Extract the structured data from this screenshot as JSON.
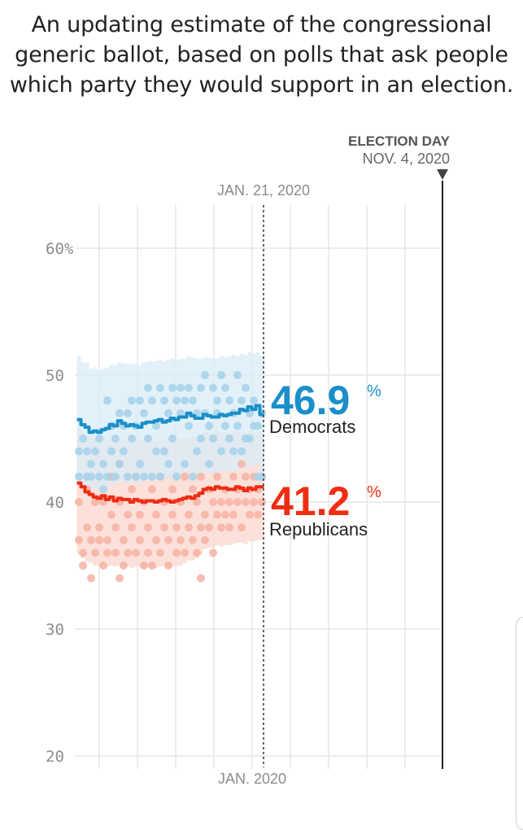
{
  "subtitle": "An updating estimate of the congressional generic ballot, based on polls that ask people which party they would support in an election.",
  "colors": {
    "democrat": "#1a8fc9",
    "democrat_light": "#a9d3ea",
    "democrat_band": "#d8ecf7",
    "republican": "#ee2d12",
    "republican_light": "#f7b5a7",
    "republican_band": "#fbdcd3",
    "grid": "#e6e6e6"
  },
  "chart_data": {
    "type": "line",
    "ylim": [
      20,
      62
    ],
    "yticks": [
      {
        "value": 60,
        "label": "60%"
      },
      {
        "value": 50,
        "label": "50"
      },
      {
        "value": 40,
        "label": "40"
      },
      {
        "value": 30,
        "label": "30"
      },
      {
        "value": 20,
        "label": "20"
      }
    ],
    "x_label": "JAN. 2020",
    "today_marker": "JAN. 21, 2020",
    "election_marker": {
      "title": "ELECTION DAY",
      "date": "NOV. 4, 2020"
    },
    "series": [
      {
        "name": "Democrats",
        "value_label": "46.9",
        "percent_sign": "%",
        "values": [
          46.5,
          46.1,
          45.9,
          45.5,
          45.6,
          45.5,
          45.7,
          45.8,
          46.1,
          46.0,
          46.4,
          46.2,
          46.0,
          46.1,
          46.0,
          45.9,
          46.2,
          46.3,
          46.3,
          46.4,
          46.5,
          46.3,
          46.4,
          46.6,
          46.5,
          46.7,
          46.7,
          47.0,
          46.8,
          46.6,
          46.6,
          46.9,
          46.8,
          46.7,
          46.7,
          46.9,
          46.8,
          46.9,
          47.0,
          47.0,
          47.3,
          47.2,
          47.5,
          47.3,
          47.6,
          46.9
        ],
        "band_high": [
          51.5,
          51.0,
          51.0,
          50.5,
          50.6,
          50.4,
          50.5,
          50.6,
          50.8,
          50.8,
          51.0,
          50.9,
          50.9,
          50.9,
          50.9,
          50.8,
          51.0,
          51.1,
          51.1,
          51.1,
          51.2,
          51.1,
          51.2,
          51.3,
          51.2,
          51.3,
          51.3,
          51.5,
          51.4,
          51.3,
          51.3,
          51.4,
          51.4,
          51.3,
          51.3,
          51.5,
          51.4,
          51.5,
          51.6,
          51.5,
          51.7,
          51.6,
          51.8,
          51.7,
          51.8,
          51.5
        ],
        "band_low": [
          41.6,
          41.3,
          41.2,
          40.9,
          41.0,
          41.0,
          41.1,
          41.2,
          41.4,
          41.4,
          41.7,
          41.6,
          41.5,
          41.6,
          41.5,
          41.5,
          41.7,
          41.8,
          41.8,
          41.8,
          41.9,
          41.8,
          41.9,
          42.0,
          42.0,
          42.1,
          42.1,
          42.4,
          42.3,
          42.2,
          42.2,
          42.3,
          42.3,
          42.2,
          42.3,
          42.4,
          42.4,
          42.4,
          42.5,
          42.5,
          42.7,
          42.6,
          42.9,
          42.8,
          43.0,
          42.3
        ]
      },
      {
        "name": "Republicans",
        "value_label": "41.2",
        "percent_sign": "%",
        "values": [
          41.5,
          41.2,
          40.8,
          40.6,
          40.4,
          40.3,
          40.5,
          40.2,
          40.4,
          40.1,
          40.3,
          40.2,
          40.2,
          40.0,
          40.2,
          40.1,
          40.0,
          40.1,
          40.1,
          40.0,
          40.1,
          40.2,
          40.1,
          40.0,
          40.1,
          40.2,
          40.3,
          40.4,
          40.3,
          40.5,
          40.7,
          41.0,
          41.1,
          41.0,
          41.2,
          41.1,
          41.1,
          41.0,
          41.0,
          41.2,
          41.1,
          40.9,
          41.1,
          41.0,
          41.2,
          41.2
        ],
        "band_high": [
          45.8,
          45.5,
          45.3,
          45.1,
          45.0,
          45.0,
          45.1,
          44.9,
          45.0,
          44.9,
          45.0,
          44.9,
          44.9,
          44.8,
          44.9,
          44.9,
          44.8,
          44.9,
          44.9,
          44.8,
          44.9,
          45.0,
          44.9,
          44.9,
          45.0,
          45.0,
          45.0,
          45.1,
          45.1,
          45.2,
          45.3,
          45.5,
          45.5,
          45.4,
          45.6,
          45.5,
          45.5,
          45.4,
          45.5,
          45.6,
          45.5,
          45.4,
          45.6,
          45.5,
          45.6,
          45.4
        ],
        "band_low": [
          35.9,
          35.6,
          35.3,
          35.2,
          35.0,
          35.0,
          35.1,
          34.9,
          35.0,
          34.9,
          35.0,
          34.9,
          34.9,
          34.8,
          34.9,
          34.9,
          34.8,
          34.9,
          34.9,
          34.8,
          34.9,
          35.0,
          34.9,
          34.9,
          35.0,
          35.0,
          35.2,
          35.4,
          35.4,
          35.6,
          35.9,
          36.3,
          36.4,
          36.4,
          36.6,
          36.5,
          36.6,
          36.6,
          36.7,
          36.8,
          36.8,
          36.7,
          36.9,
          36.9,
          37.0,
          37.0
        ]
      }
    ],
    "polls": {
      "democrats": [
        [
          0,
          44
        ],
        [
          0,
          42
        ],
        [
          1,
          45
        ],
        [
          2,
          42
        ],
        [
          2,
          44
        ],
        [
          3,
          43
        ],
        [
          3,
          42
        ],
        [
          4,
          44
        ],
        [
          5,
          42
        ],
        [
          5,
          45
        ],
        [
          6,
          41
        ],
        [
          6,
          43
        ],
        [
          7,
          42
        ],
        [
          7,
          48
        ],
        [
          8,
          46
        ],
        [
          8,
          44
        ],
        [
          9,
          42
        ],
        [
          9,
          45
        ],
        [
          10,
          47
        ],
        [
          10,
          43
        ],
        [
          11,
          46
        ],
        [
          11,
          44
        ],
        [
          12,
          42
        ],
        [
          12,
          47
        ],
        [
          13,
          45
        ],
        [
          13,
          48
        ],
        [
          14,
          42
        ],
        [
          14,
          46
        ],
        [
          15,
          48
        ],
        [
          15,
          43
        ],
        [
          16,
          47
        ],
        [
          16,
          42
        ],
        [
          17,
          45
        ],
        [
          17,
          49
        ],
        [
          18,
          48
        ],
        [
          18,
          42
        ],
        [
          19,
          44
        ],
        [
          19,
          46
        ],
        [
          20,
          49
        ],
        [
          20,
          42
        ],
        [
          21,
          48
        ],
        [
          21,
          44
        ],
        [
          22,
          47
        ],
        [
          22,
          43
        ],
        [
          23,
          49
        ],
        [
          23,
          45
        ],
        [
          24,
          48
        ],
        [
          24,
          42
        ],
        [
          25,
          47
        ],
        [
          25,
          49
        ],
        [
          26,
          48
        ],
        [
          26,
          43
        ],
        [
          27,
          49
        ],
        [
          27,
          46
        ],
        [
          28,
          48
        ],
        [
          28,
          42
        ],
        [
          29,
          47
        ],
        [
          29,
          44
        ],
        [
          30,
          49
        ],
        [
          30,
          45
        ],
        [
          31,
          50
        ],
        [
          31,
          47
        ],
        [
          32,
          46
        ],
        [
          32,
          43
        ],
        [
          33,
          49
        ],
        [
          33,
          45
        ],
        [
          34,
          48
        ],
        [
          34,
          47
        ],
        [
          35,
          50
        ],
        [
          35,
          44
        ],
        [
          36,
          49
        ],
        [
          36,
          46
        ],
        [
          37,
          45
        ],
        [
          37,
          48
        ],
        [
          38,
          47
        ],
        [
          38,
          44
        ],
        [
          39,
          50
        ],
        [
          39,
          46
        ],
        [
          40,
          44
        ],
        [
          40,
          48
        ],
        [
          41,
          45
        ],
        [
          41,
          49
        ],
        [
          42,
          47
        ],
        [
          42,
          45
        ],
        [
          43,
          48
        ],
        [
          43,
          46
        ],
        [
          44,
          42
        ],
        [
          44,
          46
        ],
        [
          45,
          42
        ],
        [
          45,
          47
        ]
      ],
      "republicans": [
        [
          0,
          40
        ],
        [
          0,
          37
        ],
        [
          1,
          36
        ],
        [
          1,
          35
        ],
        [
          2,
          41
        ],
        [
          2,
          38
        ],
        [
          3,
          34
        ],
        [
          3,
          37
        ],
        [
          4,
          40
        ],
        [
          4,
          36
        ],
        [
          5,
          38
        ],
        [
          5,
          37
        ],
        [
          6,
          35
        ],
        [
          6,
          40
        ],
        [
          7,
          37
        ],
        [
          7,
          36
        ],
        [
          8,
          42
        ],
        [
          8,
          39
        ],
        [
          9,
          36
        ],
        [
          9,
          38
        ],
        [
          10,
          43
        ],
        [
          10,
          40
        ],
        [
          11,
          37
        ],
        [
          11,
          35
        ],
        [
          12,
          39
        ],
        [
          12,
          36
        ],
        [
          13,
          41
        ],
        [
          13,
          38
        ],
        [
          14,
          36
        ],
        [
          14,
          42
        ],
        [
          15,
          39
        ],
        [
          15,
          37
        ],
        [
          16,
          35
        ],
        [
          16,
          40
        ],
        [
          17,
          38
        ],
        [
          17,
          36
        ],
        [
          18,
          41
        ],
        [
          18,
          35
        ],
        [
          19,
          37
        ],
        [
          19,
          39
        ],
        [
          20,
          36
        ],
        [
          20,
          42
        ],
        [
          21,
          38
        ],
        [
          21,
          40
        ],
        [
          22,
          37
        ],
        [
          22,
          35
        ],
        [
          23,
          39
        ],
        [
          23,
          41
        ],
        [
          24,
          36
        ],
        [
          24,
          38
        ],
        [
          25,
          40
        ],
        [
          25,
          37
        ],
        [
          26,
          42
        ],
        [
          26,
          36
        ],
        [
          27,
          39
        ],
        [
          27,
          38
        ],
        [
          28,
          37
        ],
        [
          28,
          41
        ],
        [
          29,
          40
        ],
        [
          29,
          36
        ],
        [
          30,
          38
        ],
        [
          30,
          42
        ],
        [
          31,
          39
        ],
        [
          31,
          37
        ],
        [
          32,
          41
        ],
        [
          32,
          38
        ],
        [
          33,
          40
        ],
        [
          33,
          36
        ],
        [
          34,
          42
        ],
        [
          34,
          39
        ],
        [
          35,
          38
        ],
        [
          35,
          40
        ],
        [
          36,
          41
        ],
        [
          36,
          39
        ],
        [
          37,
          40
        ],
        [
          37,
          38
        ],
        [
          38,
          42
        ],
        [
          38,
          39
        ],
        [
          39,
          41
        ],
        [
          39,
          40
        ],
        [
          40,
          38
        ],
        [
          40,
          43
        ],
        [
          41,
          42
        ],
        [
          41,
          40
        ],
        [
          42,
          41
        ],
        [
          42,
          39
        ],
        [
          43,
          40
        ],
        [
          43,
          42
        ],
        [
          44,
          41
        ],
        [
          44,
          39
        ],
        [
          45,
          40
        ],
        [
          45,
          42
        ],
        [
          10,
          34
        ],
        [
          30,
          34
        ]
      ]
    }
  }
}
